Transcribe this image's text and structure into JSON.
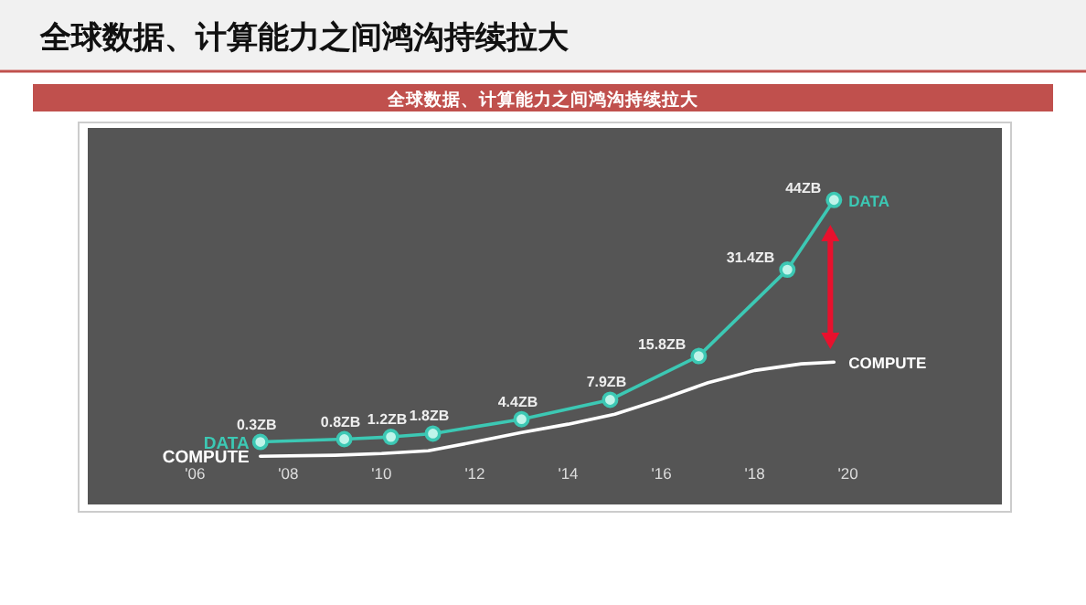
{
  "chart_data": {
    "type": "line",
    "title": "全球数据、计算能力之间鸿沟持续拉大",
    "subtitle": "全球数据、计算能力之间鸿沟持续拉大",
    "x": [
      2007.4,
      2009.2,
      2010.2,
      2011.1,
      2013.0,
      2014.9,
      2016.8,
      2018.7,
      2019.7
    ],
    "xlim": [
      2003.7,
      2023.3
    ],
    "ylim": [
      -11,
      57
    ],
    "xticks": [
      {
        "value": 2006,
        "label": "'06"
      },
      {
        "value": 2008,
        "label": "'08"
      },
      {
        "value": 2010,
        "label": "'10"
      },
      {
        "value": 2012,
        "label": "'12"
      },
      {
        "value": 2014,
        "label": "'14"
      },
      {
        "value": 2016,
        "label": "'16"
      },
      {
        "value": 2018,
        "label": "'18"
      },
      {
        "value": 2020,
        "label": "'20"
      }
    ],
    "tick_labels": "x",
    "marker": "circle",
    "line_style": "solid",
    "series": [
      {
        "name": "DATA",
        "color": "#3cc8b4",
        "values": [
          0.3,
          0.8,
          1.2,
          1.8,
          4.4,
          7.9,
          15.8,
          31.4,
          44
        ],
        "value_labels": [
          "0.3ZB",
          "0.8ZB",
          "1.2ZB",
          "1.8ZB",
          "4.4ZB",
          "7.9ZB",
          "15.8ZB",
          "31.4ZB",
          "44ZB"
        ]
      },
      {
        "name": "COMPUTE",
        "color": "#ffffff",
        "marker": "none",
        "x": [
          2007.4,
          2009,
          2010,
          2011,
          2012,
          2013,
          2014,
          2015,
          2016,
          2017,
          2018,
          2019,
          2019.7
        ],
        "values": [
          -2.3,
          -2.1,
          -1.8,
          -1.3,
          0.3,
          2,
          3.5,
          5.3,
          8,
          11,
          13.2,
          14.4,
          14.7
        ]
      }
    ]
  }
}
